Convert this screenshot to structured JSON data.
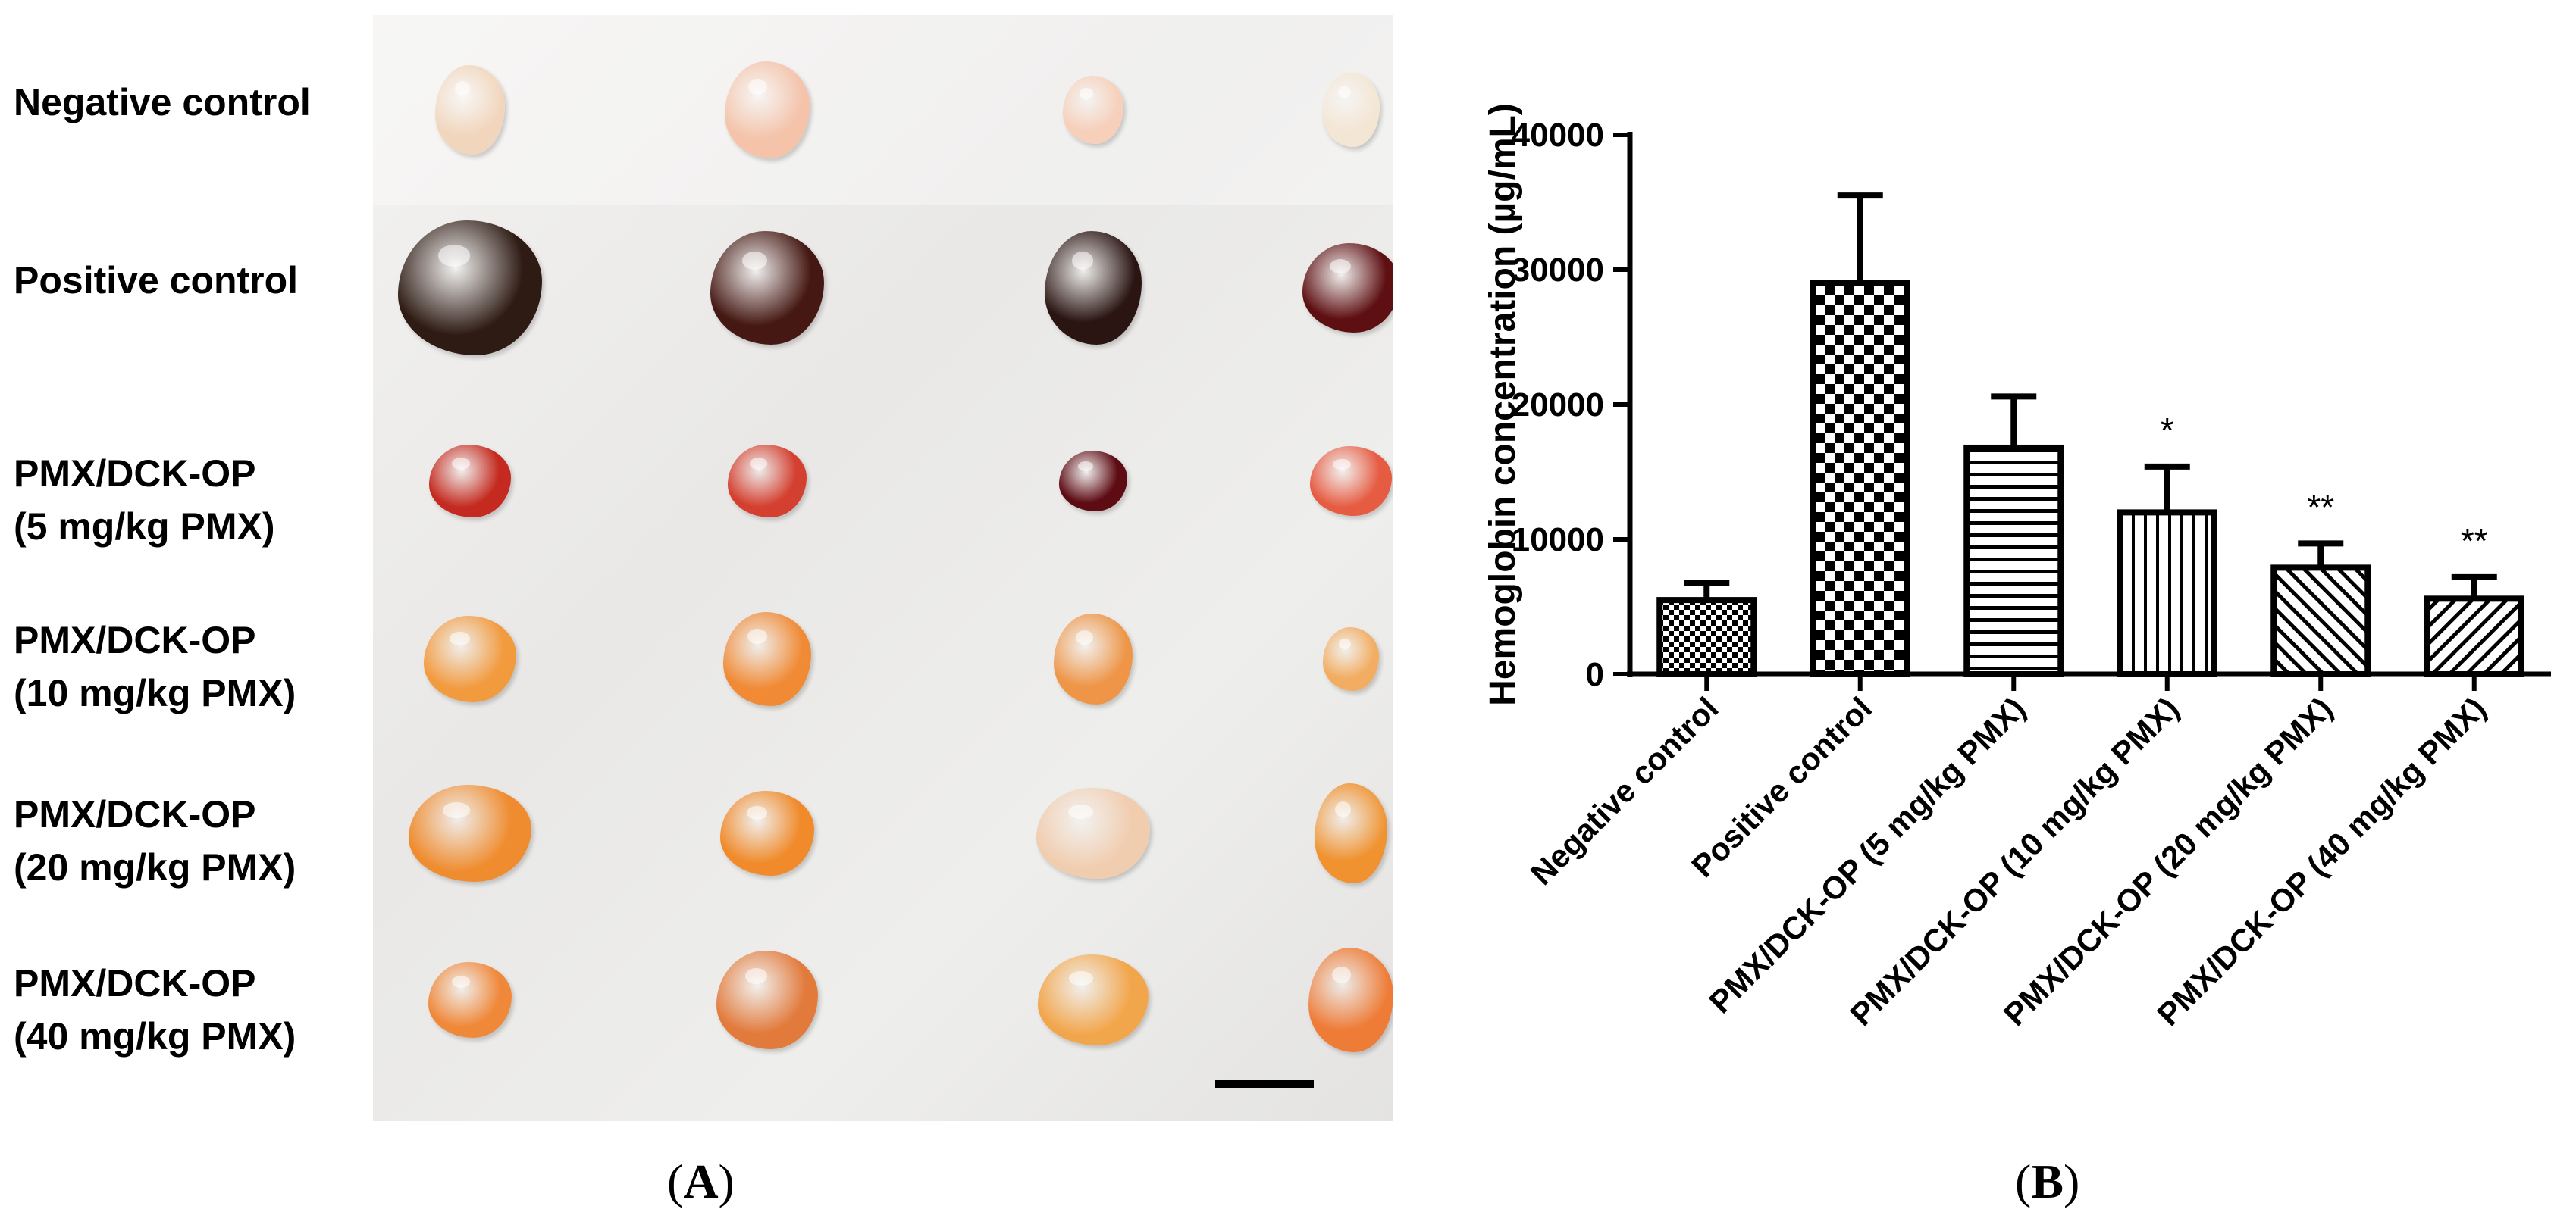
{
  "panel_a": {
    "label_open": "(",
    "label_letter": "A",
    "label_close": ")",
    "rows": [
      {
        "line1": "Negative control",
        "line2": "",
        "colors": [
          "#f1d6bd",
          "#f4c3aa",
          "#f6d0bb",
          "#f3e6d4"
        ]
      },
      {
        "line1": "Positive control",
        "line2": "",
        "colors": [
          "#2e1b14",
          "#451813",
          "#2a1512",
          "#5e0f12"
        ]
      },
      {
        "line1": "PMX/DCK-OP",
        "line2": "(5 mg/kg PMX)",
        "colors": [
          "#c42a1f",
          "#d44030",
          "#5e0c14",
          "#e65c43"
        ]
      },
      {
        "line1": "PMX/DCK-OP",
        "line2": "(10 mg/kg PMX)",
        "colors": [
          "#f29a3e",
          "#f08a35",
          "#ee9547",
          "#f2ad62"
        ]
      },
      {
        "line1": "PMX/DCK-OP",
        "line2": "(20 mg/kg PMX)",
        "colors": [
          "#ef8c2f",
          "#f08a2a",
          "#f1cdb0",
          "#f0922f"
        ]
      },
      {
        "line1": "PMX/DCK-OP",
        "line2": "(40 mg/kg PMX)",
        "colors": [
          "#f0883a",
          "#e27a3c",
          "#f2a64c",
          "#ee7b36"
        ]
      }
    ]
  },
  "panel_b": {
    "label_open": "(",
    "label_letter": "B",
    "label_close": ")"
  },
  "chart_data": {
    "type": "bar",
    "title": "",
    "xlabel": "",
    "ylabel": "Hemoglobin concentration (µg/mL)",
    "ylim": [
      0,
      40000
    ],
    "yticks": [
      0,
      10000,
      20000,
      30000,
      40000
    ],
    "ytick_labels": [
      "0",
      "10000",
      "20000",
      "30000",
      "40000"
    ],
    "categories": [
      "Negative control",
      "Positive control",
      "PMX/DCK-OP (5 mg/kg PMX)",
      "PMX/DCK-OP (10 mg/kg PMX)",
      "PMX/DCK-OP (20 mg/kg PMX)",
      "PMX/DCK-OP (40 mg/kg PMX)"
    ],
    "values": [
      5500,
      29000,
      16800,
      12000,
      7900,
      5600
    ],
    "errors": [
      1300,
      6500,
      3800,
      3400,
      1800,
      1600
    ],
    "patterns": [
      "checker",
      "checker-large",
      "horizontal",
      "vertical",
      "diagonal-up",
      "diagonal-down"
    ],
    "annotations": [
      "",
      "",
      "",
      "*",
      "**",
      "**"
    ]
  }
}
